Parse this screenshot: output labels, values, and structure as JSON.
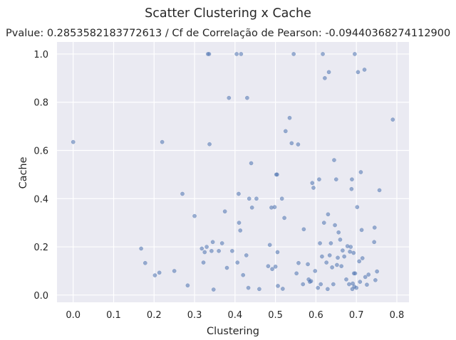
{
  "chart_data": {
    "type": "scatter",
    "title": "Scatter Clustering x Cache",
    "subtitle": "Pvalue: 0.2853582183772613 / Cf de Correlação de Pearson: -0.09440368274112900",
    "xlabel": "Clustering",
    "ylabel": "Cache",
    "xlim": [
      -0.04,
      0.83
    ],
    "ylim": [
      -0.03,
      1.05
    ],
    "xticks": [
      "0.0",
      "0.1",
      "0.2",
      "0.3",
      "0.4",
      "0.5",
      "0.6",
      "0.7",
      "0.8"
    ],
    "xtick_values": [
      0.0,
      0.1,
      0.2,
      0.3,
      0.4,
      0.5,
      0.6,
      0.7,
      0.8
    ],
    "yticks": [
      "0.0",
      "0.2",
      "0.4",
      "0.6",
      "0.8",
      "1.0"
    ],
    "ytick_values": [
      0.0,
      0.2,
      0.4,
      0.6,
      0.8,
      1.0
    ],
    "grid": true,
    "colors": {
      "background": "#eaeaf2",
      "grid": "#ffffff",
      "point": "#4c72b0"
    },
    "points": [
      {
        "x": 0.0,
        "y": 0.635
      },
      {
        "x": 0.168,
        "y": 0.193
      },
      {
        "x": 0.178,
        "y": 0.133
      },
      {
        "x": 0.202,
        "y": 0.082
      },
      {
        "x": 0.213,
        "y": 0.093
      },
      {
        "x": 0.22,
        "y": 0.635
      },
      {
        "x": 0.25,
        "y": 0.1
      },
      {
        "x": 0.27,
        "y": 0.42
      },
      {
        "x": 0.283,
        "y": 0.04
      },
      {
        "x": 0.3,
        "y": 0.328
      },
      {
        "x": 0.318,
        "y": 0.193
      },
      {
        "x": 0.322,
        "y": 0.135
      },
      {
        "x": 0.325,
        "y": 0.178
      },
      {
        "x": 0.33,
        "y": 0.2
      },
      {
        "x": 0.333,
        "y": 1.0
      },
      {
        "x": 0.336,
        "y": 1.0
      },
      {
        "x": 0.337,
        "y": 0.626
      },
      {
        "x": 0.342,
        "y": 0.183
      },
      {
        "x": 0.345,
        "y": 0.22
      },
      {
        "x": 0.347,
        "y": 0.023
      },
      {
        "x": 0.36,
        "y": 0.183
      },
      {
        "x": 0.368,
        "y": 0.215
      },
      {
        "x": 0.375,
        "y": 0.347
      },
      {
        "x": 0.38,
        "y": 0.113
      },
      {
        "x": 0.385,
        "y": 0.818
      },
      {
        "x": 0.393,
        "y": 0.183
      },
      {
        "x": 0.404,
        "y": 1.0
      },
      {
        "x": 0.406,
        "y": 0.135
      },
      {
        "x": 0.409,
        "y": 0.42
      },
      {
        "x": 0.41,
        "y": 0.3
      },
      {
        "x": 0.413,
        "y": 0.268
      },
      {
        "x": 0.415,
        "y": 1.0
      },
      {
        "x": 0.42,
        "y": 0.083
      },
      {
        "x": 0.428,
        "y": 0.165
      },
      {
        "x": 0.43,
        "y": 0.818
      },
      {
        "x": 0.433,
        "y": 0.03
      },
      {
        "x": 0.435,
        "y": 0.4
      },
      {
        "x": 0.44,
        "y": 0.547
      },
      {
        "x": 0.442,
        "y": 0.363
      },
      {
        "x": 0.453,
        "y": 0.4
      },
      {
        "x": 0.46,
        "y": 0.025
      },
      {
        "x": 0.482,
        "y": 0.12
      },
      {
        "x": 0.486,
        "y": 0.208
      },
      {
        "x": 0.49,
        "y": 0.363
      },
      {
        "x": 0.492,
        "y": 0.108
      },
      {
        "x": 0.498,
        "y": 0.365
      },
      {
        "x": 0.5,
        "y": 0.118
      },
      {
        "x": 0.502,
        "y": 0.5
      },
      {
        "x": 0.504,
        "y": 0.5
      },
      {
        "x": 0.505,
        "y": 0.178
      },
      {
        "x": 0.506,
        "y": 0.038
      },
      {
        "x": 0.516,
        "y": 0.4
      },
      {
        "x": 0.518,
        "y": 0.026
      },
      {
        "x": 0.522,
        "y": 0.32
      },
      {
        "x": 0.525,
        "y": 0.68
      },
      {
        "x": 0.535,
        "y": 0.735
      },
      {
        "x": 0.54,
        "y": 0.63
      },
      {
        "x": 0.545,
        "y": 1.0
      },
      {
        "x": 0.552,
        "y": 0.09
      },
      {
        "x": 0.556,
        "y": 0.625
      },
      {
        "x": 0.557,
        "y": 0.133
      },
      {
        "x": 0.568,
        "y": 0.045
      },
      {
        "x": 0.57,
        "y": 0.273
      },
      {
        "x": 0.58,
        "y": 0.128
      },
      {
        "x": 0.582,
        "y": 0.065
      },
      {
        "x": 0.585,
        "y": 0.055
      },
      {
        "x": 0.588,
        "y": 0.058
      },
      {
        "x": 0.591,
        "y": 0.465
      },
      {
        "x": 0.594,
        "y": 0.445
      },
      {
        "x": 0.598,
        "y": 0.1
      },
      {
        "x": 0.605,
        "y": 0.03
      },
      {
        "x": 0.608,
        "y": 0.48
      },
      {
        "x": 0.61,
        "y": 0.215
      },
      {
        "x": 0.612,
        "y": 0.045
      },
      {
        "x": 0.615,
        "y": 0.16
      },
      {
        "x": 0.617,
        "y": 1.0
      },
      {
        "x": 0.62,
        "y": 0.3
      },
      {
        "x": 0.622,
        "y": 0.9
      },
      {
        "x": 0.626,
        "y": 0.135
      },
      {
        "x": 0.629,
        "y": 0.025
      },
      {
        "x": 0.63,
        "y": 0.335
      },
      {
        "x": 0.632,
        "y": 0.925
      },
      {
        "x": 0.634,
        "y": 0.165
      },
      {
        "x": 0.637,
        "y": 0.215
      },
      {
        "x": 0.64,
        "y": 0.115
      },
      {
        "x": 0.643,
        "y": 0.045
      },
      {
        "x": 0.645,
        "y": 0.56
      },
      {
        "x": 0.647,
        "y": 0.29
      },
      {
        "x": 0.65,
        "y": 0.48
      },
      {
        "x": 0.652,
        "y": 0.125
      },
      {
        "x": 0.654,
        "y": 0.155
      },
      {
        "x": 0.656,
        "y": 0.26
      },
      {
        "x": 0.66,
        "y": 0.23
      },
      {
        "x": 0.663,
        "y": 0.12
      },
      {
        "x": 0.666,
        "y": 0.185
      },
      {
        "x": 0.67,
        "y": 0.16
      },
      {
        "x": 0.675,
        "y": 0.065
      },
      {
        "x": 0.678,
        "y": 0.203
      },
      {
        "x": 0.682,
        "y": 0.045
      },
      {
        "x": 0.684,
        "y": 0.18
      },
      {
        "x": 0.686,
        "y": 0.2
      },
      {
        "x": 0.688,
        "y": 0.44
      },
      {
        "x": 0.689,
        "y": 0.48
      },
      {
        "x": 0.69,
        "y": 0.025
      },
      {
        "x": 0.691,
        "y": 0.048
      },
      {
        "x": 0.693,
        "y": 0.175
      },
      {
        "x": 0.694,
        "y": 0.09
      },
      {
        "x": 0.695,
        "y": 0.035
      },
      {
        "x": 0.696,
        "y": 1.0
      },
      {
        "x": 0.697,
        "y": 0.09
      },
      {
        "x": 0.7,
        "y": 0.03
      },
      {
        "x": 0.702,
        "y": 0.365
      },
      {
        "x": 0.704,
        "y": 0.925
      },
      {
        "x": 0.707,
        "y": 0.14
      },
      {
        "x": 0.709,
        "y": 0.055
      },
      {
        "x": 0.711,
        "y": 0.51
      },
      {
        "x": 0.713,
        "y": 0.27
      },
      {
        "x": 0.715,
        "y": 0.153
      },
      {
        "x": 0.72,
        "y": 0.935
      },
      {
        "x": 0.722,
        "y": 0.075
      },
      {
        "x": 0.726,
        "y": 0.043
      },
      {
        "x": 0.73,
        "y": 0.085
      },
      {
        "x": 0.744,
        "y": 0.22
      },
      {
        "x": 0.745,
        "y": 0.28
      },
      {
        "x": 0.747,
        "y": 0.062
      },
      {
        "x": 0.751,
        "y": 0.098
      },
      {
        "x": 0.757,
        "y": 0.435
      },
      {
        "x": 0.79,
        "y": 0.728
      }
    ]
  }
}
